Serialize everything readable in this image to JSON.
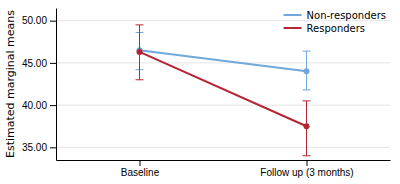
{
  "chart_data": {
    "type": "line",
    "categories": [
      "Baseline",
      "Follow up (3 months)"
    ],
    "series": [
      {
        "name": "Non-responders",
        "color": "#6fa8dc",
        "values": [
          46.5,
          44.0
        ],
        "ci_lower": [
          44.2,
          41.8
        ],
        "ci_upper": [
          48.6,
          46.4
        ]
      },
      {
        "name": "Responders",
        "color": "#b52535",
        "values": [
          46.3,
          37.5
        ],
        "ci_lower": [
          43.0,
          34.0
        ],
        "ci_upper": [
          49.5,
          40.5
        ]
      }
    ],
    "y_label": "Estimated marginal means",
    "ylim": [
      33.5,
      51.5
    ],
    "yticks": [
      {
        "value": 35.0,
        "label": "35.00"
      },
      {
        "value": 40.0,
        "label": "40.00"
      },
      {
        "value": 45.0,
        "label": "45.00"
      },
      {
        "value": 50.0,
        "label": "50.00"
      }
    ],
    "grid": true,
    "legend": "upper right",
    "marker": "circle"
  }
}
